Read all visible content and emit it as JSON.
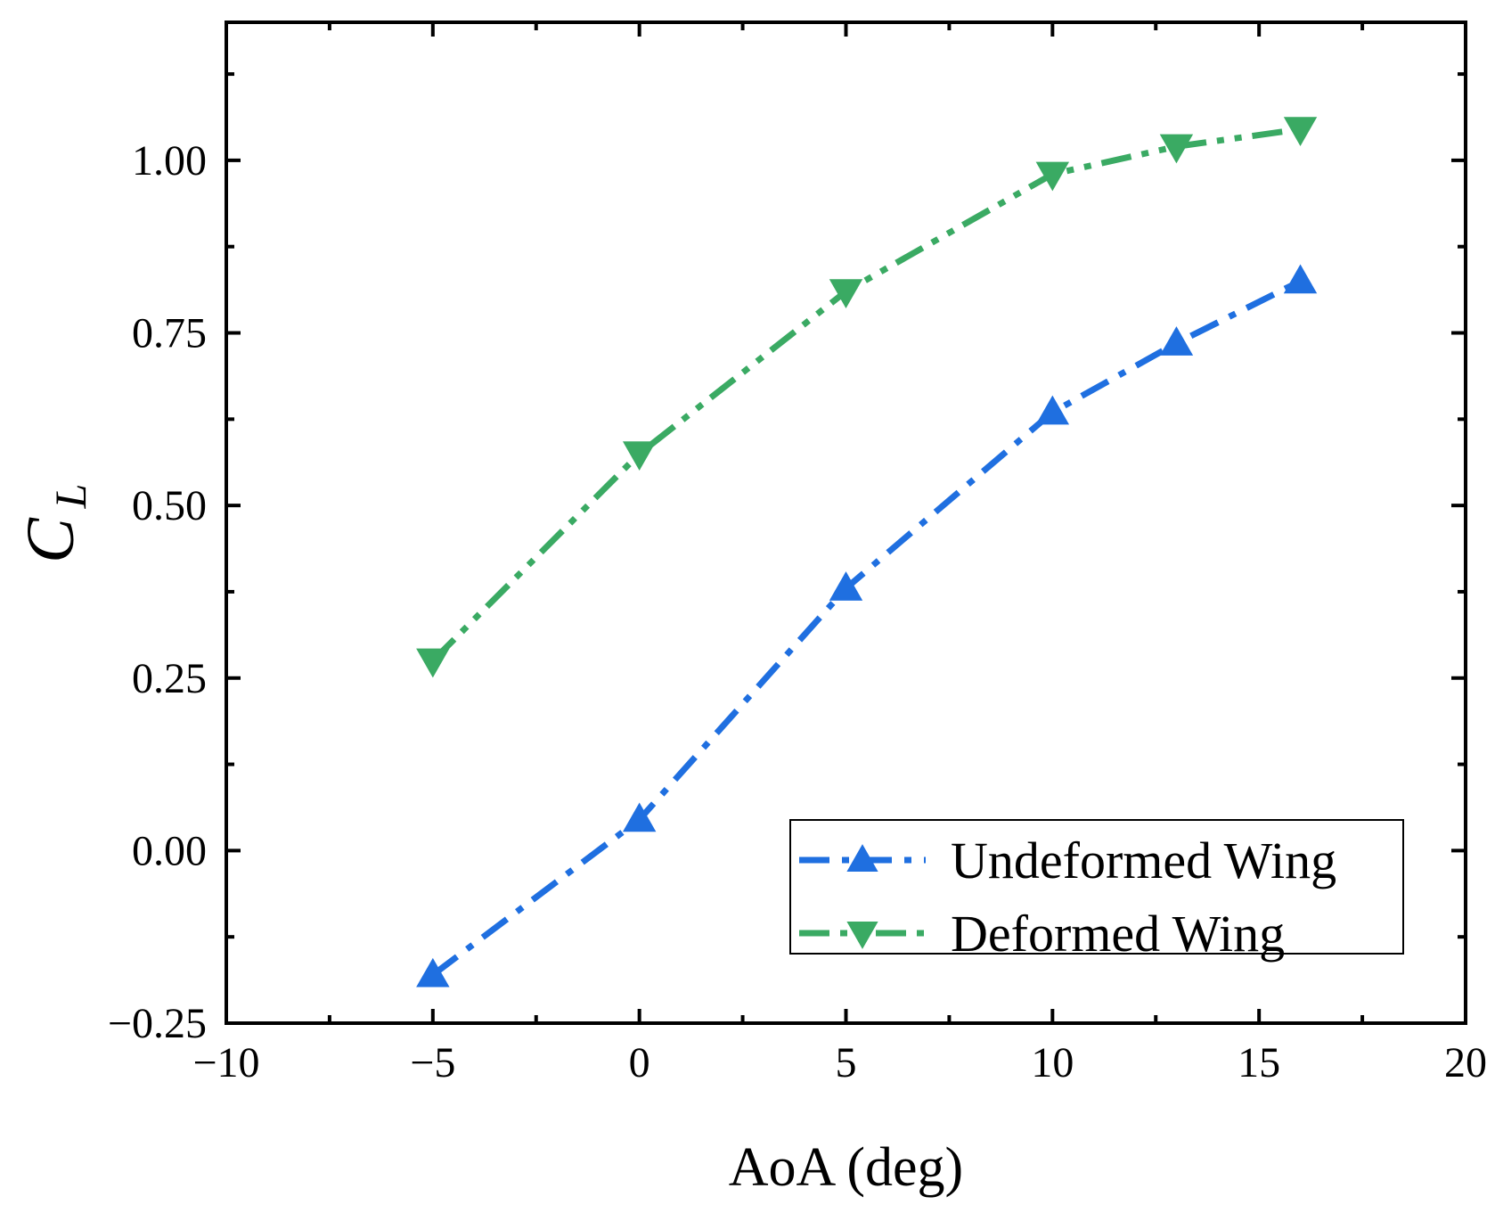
{
  "chart_data": {
    "type": "line",
    "title": "",
    "xlabel": "AoA (deg)",
    "ylabel": {
      "main": "C",
      "sub": "L"
    },
    "xlim": [
      -10,
      20
    ],
    "ylim": [
      -0.25,
      1.2
    ],
    "xticks": [
      -10,
      -5,
      0,
      5,
      10,
      15,
      20
    ],
    "xtick_labels": [
      "−10",
      "−5",
      "0",
      "5",
      "10",
      "15",
      "20"
    ],
    "yticks": [
      -0.25,
      0,
      0.25,
      0.5,
      0.75,
      1.0
    ],
    "ytick_labels": [
      "−0.25",
      "0.00",
      "0.25",
      "0.50",
      "0.75",
      "1.00"
    ],
    "grid": false,
    "legend_position": "bottom-right",
    "series": [
      {
        "name": "Undeformed Wing",
        "marker": "triangle-up",
        "line_style": "dash-dot",
        "color": "#1f6fe0",
        "x": [
          -5,
          0,
          5,
          10,
          13,
          16
        ],
        "y": [
          -0.18,
          0.045,
          0.38,
          0.635,
          0.735,
          0.825
        ]
      },
      {
        "name": "Deformed Wing",
        "marker": "triangle-down",
        "line_style": "dash-dot-dot",
        "color": "#3aaa63",
        "x": [
          -5,
          0,
          5,
          10,
          13,
          16
        ],
        "y": [
          0.275,
          0.575,
          0.81,
          0.98,
          1.02,
          1.045
        ]
      }
    ]
  }
}
